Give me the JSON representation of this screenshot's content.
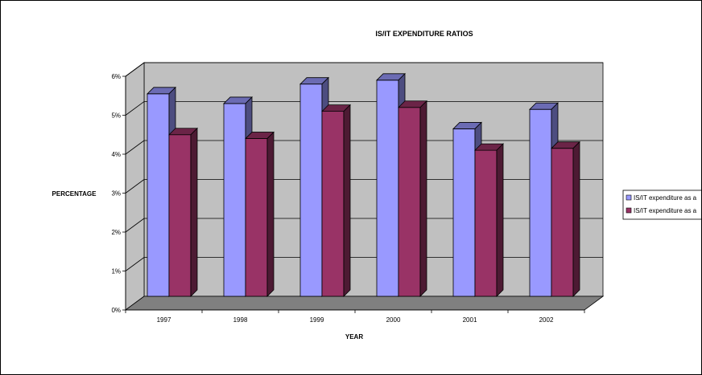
{
  "chart_data": {
    "type": "bar",
    "title": "IS/IT EXPENDITURE RATIOS",
    "xlabel": "YEAR",
    "ylabel": "PERCENTAGE",
    "categories": [
      "1997",
      "1998",
      "1999",
      "2000",
      "2001",
      "2002"
    ],
    "series": [
      {
        "name": "IS/IT expenditure as a",
        "values": [
          5.2,
          4.95,
          5.45,
          5.55,
          4.3,
          4.8
        ]
      },
      {
        "name": "IS/IT expenditure as a",
        "values": [
          4.15,
          4.05,
          4.75,
          4.85,
          3.75,
          3.8
        ]
      }
    ],
    "ylim": [
      0,
      6
    ],
    "yticks": [
      "0%",
      "1%",
      "2%",
      "3%",
      "4%",
      "5%",
      "6%"
    ],
    "grid": true,
    "legend_position": "right",
    "three_d": true,
    "colors": {
      "series_1": "#9999ff",
      "series_2": "#993366",
      "wall": "#c0c0c0",
      "floor": "#808080",
      "grid": "#000000"
    }
  }
}
